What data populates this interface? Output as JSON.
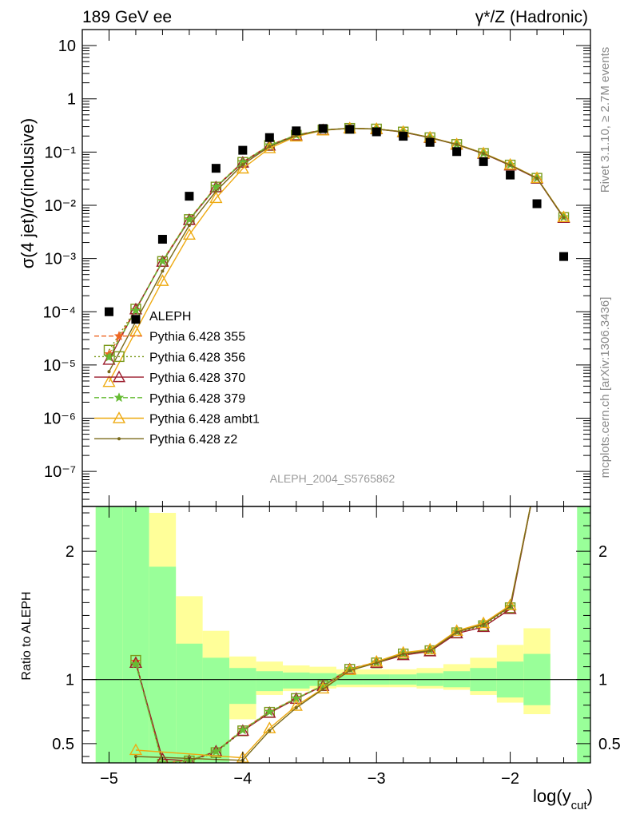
{
  "header": {
    "left": "189 GeV ee",
    "right": "γ*/Z (Hadronic)"
  },
  "side_labels": {
    "rivet": "Rivet 3.1.10, ≥ 2.7M events",
    "mcplots": "mcplots.cern.ch [arXiv:1306.3436]"
  },
  "analysis_label": "ALEPH_2004_S5765862",
  "chart_data": [
    {
      "type": "scatter",
      "panel": "main",
      "ylabel": "σ(4 jet)/σ(inclusive)",
      "yscale": "log",
      "xlim": [
        -5.2,
        -1.4
      ],
      "ylim": [
        2.2e-08,
        20
      ],
      "y_tick_labels": [
        "10",
        "1",
        "10⁻¹",
        "10⁻²",
        "10⁻³",
        "10⁻⁴",
        "10⁻⁵",
        "10⁻⁶",
        "10⁻⁷"
      ],
      "legend_position": "left-middle",
      "data_series": {
        "name": "ALEPH",
        "color": "#000000",
        "x": [
          -5.0,
          -4.8,
          -4.6,
          -4.4,
          -4.2,
          -4.0,
          -3.8,
          -3.6,
          -3.4,
          -3.2,
          -3.0,
          -2.8,
          -2.6,
          -2.4,
          -2.2,
          -2.0,
          -1.8,
          -1.6
        ],
        "y": [
          0.0001,
          7.2e-05,
          0.0023,
          0.0148,
          0.0495,
          0.108,
          0.187,
          0.25,
          0.277,
          0.268,
          0.24,
          0.198,
          0.152,
          0.102,
          0.066,
          0.037,
          0.0107,
          0.00109
        ]
      },
      "series": [
        {
          "name": "Pythia 6.428 355",
          "color": "#ee6622",
          "dash": "6,3",
          "marker": "star",
          "x": [
            -5.0,
            -4.8,
            -4.6,
            -4.4,
            -4.2,
            -4.0,
            -3.8,
            -3.6,
            -3.4,
            -3.2,
            -3.0,
            -2.8,
            -2.6,
            -2.4,
            -2.2,
            -2.0,
            -1.8,
            -1.6
          ],
          "y": [
            1.6e-05,
            0.000108,
            0.00091,
            0.0055,
            0.0225,
            0.0655,
            0.135,
            0.21,
            0.262,
            0.28,
            0.272,
            0.24,
            0.188,
            0.14,
            0.095,
            0.058,
            0.0325,
            0.006
          ]
        },
        {
          "name": "Pythia 6.428 356",
          "color": "#7a9a1a",
          "dash": "2,3",
          "marker": "square-open",
          "x": [
            -5.0,
            -4.8,
            -4.6,
            -4.4,
            -4.2,
            -4.0,
            -3.8,
            -3.6,
            -3.4,
            -3.2,
            -3.0,
            -2.8,
            -2.6,
            -2.4,
            -2.2,
            -2.0,
            -1.8,
            -1.6
          ],
          "y": [
            1.9e-05,
            0.000112,
            0.00088,
            0.0054,
            0.022,
            0.064,
            0.133,
            0.207,
            0.26,
            0.279,
            0.271,
            0.238,
            0.186,
            0.139,
            0.094,
            0.057,
            0.0322,
            0.0059
          ]
        },
        {
          "name": "Pythia 6.428 370",
          "color": "#9b1b2b",
          "dash": "",
          "marker": "triangle-open",
          "x": [
            -5.0,
            -4.8,
            -4.6,
            -4.4,
            -4.2,
            -4.0,
            -3.8,
            -3.6,
            -3.4,
            -3.2,
            -3.0,
            -2.8,
            -2.6,
            -2.4,
            -2.2,
            -2.0,
            -1.8,
            -1.6
          ],
          "y": [
            1.25e-05,
            0.000111,
            0.00087,
            0.0053,
            0.0218,
            0.0635,
            0.132,
            0.206,
            0.259,
            0.278,
            0.27,
            0.237,
            0.185,
            0.138,
            0.093,
            0.056,
            0.0318,
            0.0058
          ]
        },
        {
          "name": "Pythia 6.428 379",
          "color": "#66bb33",
          "dash": "6,3",
          "marker": "star",
          "x": [
            -5.0,
            -4.8,
            -4.6,
            -4.4,
            -4.2,
            -4.0,
            -3.8,
            -3.6,
            -3.4,
            -3.2,
            -3.0,
            -2.8,
            -2.6,
            -2.4,
            -2.2,
            -2.0,
            -1.8,
            -1.6
          ],
          "y": [
            1.4e-05,
            0.000105,
            0.00089,
            0.0054,
            0.0222,
            0.0645,
            0.134,
            0.208,
            0.261,
            0.279,
            0.271,
            0.239,
            0.187,
            0.14,
            0.095,
            0.058,
            0.0324,
            0.006
          ]
        },
        {
          "name": "Pythia 6.428 ambt1",
          "color": "#eeaa11",
          "dash": "",
          "marker": "triangle-open",
          "x": [
            -5.0,
            -4.8,
            -4.6,
            -4.4,
            -4.2,
            -4.0,
            -3.8,
            -3.6,
            -3.4,
            -3.2,
            -3.0,
            -2.8,
            -2.6,
            -2.4,
            -2.2,
            -2.0,
            -1.8,
            -1.6
          ],
          "y": [
            4.8e-06,
            4.3e-05,
            0.00038,
            0.0028,
            0.0137,
            0.049,
            0.118,
            0.196,
            0.255,
            0.279,
            0.272,
            0.24,
            0.188,
            0.14,
            0.095,
            0.058,
            0.0326,
            0.006
          ]
        },
        {
          "name": "Pythia 6.428 z2",
          "color": "#7a6a1a",
          "dash": "",
          "marker": "dot",
          "x": [
            -5.0,
            -4.8,
            -4.6,
            -4.4,
            -4.2,
            -4.0,
            -3.8,
            -3.6,
            -3.4,
            -3.2,
            -3.0,
            -2.8,
            -2.6,
            -2.4,
            -2.2,
            -2.0,
            -1.8,
            -1.6
          ],
          "y": [
            7.5e-06,
            6.5e-05,
            0.00058,
            0.0042,
            0.0185,
            0.058,
            0.127,
            0.203,
            0.258,
            0.279,
            0.271,
            0.239,
            0.187,
            0.139,
            0.094,
            0.057,
            0.0323,
            0.0059
          ]
        }
      ]
    },
    {
      "type": "line",
      "panel": "ratio",
      "ylabel": "Ratio to ALEPH",
      "xlabel_base": "log(y",
      "xlabel_sub": "cut",
      "xlabel_close": ")",
      "xlim": [
        -5.2,
        -1.4
      ],
      "ylim": [
        0.35,
        2.35
      ],
      "x_ticks": [
        -5,
        -4,
        -3,
        -2
      ],
      "x_tick_labels": [
        "−5",
        "−4",
        "−3",
        "−2"
      ],
      "y_ticks": [
        0.5,
        1,
        2
      ],
      "y_tick_labels": [
        "0.5",
        "1",
        "2"
      ],
      "reference_line": 1,
      "bands": {
        "edges": [
          -5.1,
          -4.9,
          -4.7,
          -4.5,
          -4.3,
          -4.1,
          -3.9,
          -3.7,
          -3.5,
          -3.3,
          -3.1,
          -2.9,
          -2.7,
          -2.5,
          -2.3,
          -2.1,
          -1.9,
          -1.7
        ],
        "inner_lo": [
          0.0,
          0.0,
          0.0,
          0.0,
          0.0,
          0.81,
          0.91,
          0.93,
          0.95,
          0.96,
          0.96,
          0.96,
          0.95,
          0.94,
          0.91,
          0.86,
          0.8
        ],
        "inner_hi": [
          3.0,
          3.0,
          1.88,
          1.28,
          1.17,
          1.09,
          1.065,
          1.055,
          1.05,
          1.04,
          1.04,
          1.04,
          1.05,
          1.065,
          1.09,
          1.14,
          1.2
        ],
        "outer_lo": [
          0.0,
          0.0,
          0.0,
          0.0,
          0.0,
          0.69,
          0.88,
          0.91,
          0.93,
          0.94,
          0.94,
          0.94,
          0.93,
          0.92,
          0.88,
          0.82,
          0.73
        ],
        "outer_hi": [
          3.0,
          3.0,
          2.3,
          1.65,
          1.38,
          1.18,
          1.14,
          1.11,
          1.1,
          1.08,
          1.08,
          1.08,
          1.09,
          1.12,
          1.17,
          1.27,
          1.4
        ],
        "last_bin": {
          "lo": -1.5,
          "hi": -1.3
        }
      },
      "series": [
        {
          "name": "Pythia 6.428 355",
          "color": "#ee6622",
          "dash": "6,3",
          "marker": "star",
          "x": [
            -4.8,
            -4.6,
            -4.4,
            -4.2,
            -4.0,
            -3.8,
            -3.6,
            -3.4,
            -3.2,
            -3.0,
            -2.8,
            -2.6,
            -2.4,
            -2.2,
            -2.0,
            -1.8
          ],
          "y": [
            1.14,
            0.35,
            0.37,
            0.44,
            0.61,
            0.75,
            0.855,
            0.955,
            1.085,
            1.135,
            1.2,
            1.23,
            1.375,
            1.43,
            1.57,
            2.6
          ]
        },
        {
          "name": "Pythia 6.428 356",
          "color": "#7a9a1a",
          "dash": "2,3",
          "marker": "square-open",
          "x": [
            -4.8,
            -4.6,
            -4.4,
            -4.2,
            -4.0,
            -3.8,
            -3.6,
            -3.4,
            -3.2,
            -3.0,
            -2.8,
            -2.6,
            -2.4,
            -2.2,
            -2.0,
            -1.8
          ],
          "y": [
            1.15,
            0.34,
            0.365,
            0.43,
            0.6,
            0.745,
            0.852,
            0.952,
            1.08,
            1.13,
            1.2,
            1.225,
            1.365,
            1.42,
            1.56,
            2.6
          ]
        },
        {
          "name": "Pythia 6.428 370",
          "color": "#9b1b2b",
          "dash": "",
          "marker": "triangle-open",
          "x": [
            -4.8,
            -4.6,
            -4.4,
            -4.2,
            -4.0,
            -3.8,
            -3.6,
            -3.4,
            -3.2,
            -3.0,
            -2.8,
            -2.6,
            -2.4,
            -2.2,
            -2.0,
            -1.8
          ],
          "y": [
            1.13,
            0.38,
            0.365,
            0.44,
            0.6,
            0.74,
            0.85,
            0.95,
            1.08,
            1.13,
            1.19,
            1.22,
            1.36,
            1.41,
            1.55,
            2.6
          ]
        },
        {
          "name": "Pythia 6.428 379",
          "color": "#66bb33",
          "dash": "6,3",
          "marker": "star",
          "x": [
            -4.8,
            -4.6,
            -4.4,
            -4.2,
            -4.0,
            -3.8,
            -3.6,
            -3.4,
            -3.2,
            -3.0,
            -2.8,
            -2.6,
            -2.4,
            -2.2,
            -2.0,
            -1.8
          ],
          "y": [
            1.12,
            0.35,
            0.37,
            0.44,
            0.605,
            0.748,
            0.853,
            0.953,
            1.083,
            1.133,
            1.205,
            1.23,
            1.375,
            1.435,
            1.57,
            2.6
          ]
        },
        {
          "name": "Pythia 6.428 ambt1",
          "color": "#eeaa11",
          "dash": "",
          "marker": "triangle-open",
          "x": [
            -4.8,
            -4.0,
            -3.8,
            -3.6,
            -3.4,
            -3.2,
            -3.0,
            -2.8,
            -2.6,
            -2.4,
            -2.2,
            -2.0,
            -1.8
          ],
          "y": [
            0.45,
            0.39,
            0.62,
            0.795,
            0.93,
            1.075,
            1.14,
            1.21,
            1.235,
            1.38,
            1.44,
            1.58,
            2.6
          ]
        },
        {
          "name": "Pythia 6.428 z2",
          "color": "#7a6a1a",
          "dash": "",
          "marker": "dot",
          "x": [
            -4.8,
            -4.0,
            -3.8,
            -3.6,
            -3.4,
            -3.2,
            -3.0,
            -2.8,
            -2.6,
            -2.4,
            -2.2,
            -2.0,
            -1.8
          ],
          "y": [
            0.4,
            0.37,
            0.6,
            0.78,
            0.925,
            1.07,
            1.13,
            1.2,
            1.225,
            1.37,
            1.43,
            1.57,
            2.6
          ]
        }
      ]
    }
  ]
}
